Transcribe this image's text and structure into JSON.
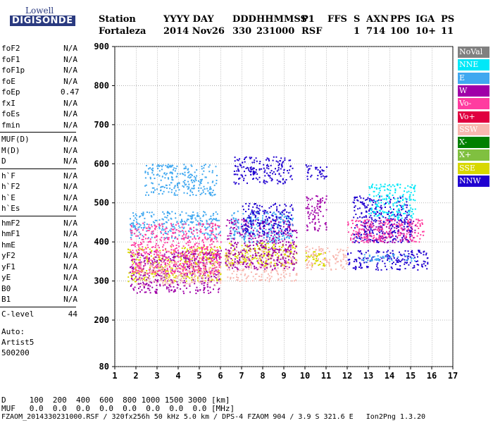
{
  "logo": {
    "top": "Lowell",
    "bottom": "DIGISONDE"
  },
  "header": {
    "cols": [
      {
        "h": "Station",
        "v": "Fortaleza"
      },
      {
        "h": "YYYY DAY",
        "v": "2014 Nov26"
      },
      {
        "h": "DDD",
        "v": "330"
      },
      {
        "h": "HHMMSS",
        "v": "231000"
      },
      {
        "h": "P1",
        "v": "RSF"
      },
      {
        "h": "FFS",
        "v": ""
      },
      {
        "h": "S",
        "v": "1"
      },
      {
        "h": "AXN",
        "v": "714"
      },
      {
        "h": "PPS",
        "v": "100"
      },
      {
        "h": "IGA",
        "v": "10+"
      },
      {
        "h": "PS",
        "v": "11"
      }
    ]
  },
  "params": [
    {
      "k": "foF2",
      "v": "N/A"
    },
    {
      "k": "foF1",
      "v": "N/A"
    },
    {
      "k": "foF1p",
      "v": "N/A"
    },
    {
      "k": "foE",
      "v": "N/A"
    },
    {
      "k": "foEp",
      "v": "0.47"
    },
    {
      "k": "fxI",
      "v": "N/A"
    },
    {
      "k": "foEs",
      "v": "N/A"
    },
    {
      "k": "fmin",
      "v": "N/A"
    },
    {
      "k": "MUF(D)",
      "v": "N/A"
    },
    {
      "k": "M(D)",
      "v": "N/A"
    },
    {
      "k": "D",
      "v": "N/A"
    },
    {
      "k": "h`F",
      "v": "N/A"
    },
    {
      "k": "h`F2",
      "v": "N/A"
    },
    {
      "k": "h`E",
      "v": "N/A"
    },
    {
      "k": "h`Es",
      "v": "N/A"
    },
    {
      "k": "hmF2",
      "v": "N/A"
    },
    {
      "k": "hmF1",
      "v": "N/A"
    },
    {
      "k": "hmE",
      "v": "N/A"
    },
    {
      "k": "yF2",
      "v": "N/A"
    },
    {
      "k": "yF1",
      "v": "N/A"
    },
    {
      "k": "yE",
      "v": "N/A"
    },
    {
      "k": "B0",
      "v": "N/A"
    },
    {
      "k": "B1",
      "v": "N/A"
    },
    {
      "k": "C-level",
      "v": "44"
    }
  ],
  "auto": [
    "Auto:",
    "Artist5",
    "500200"
  ],
  "legend": [
    {
      "label": "NoVal",
      "color": "#808080"
    },
    {
      "label": "NNE",
      "color": "#00e8f8"
    },
    {
      "label": "E",
      "color": "#40a8f0"
    },
    {
      "label": "W",
      "color": "#a000a8"
    },
    {
      "label": "Vo-",
      "color": "#ff3ca0"
    },
    {
      "label": "Vo+",
      "color": "#e00040"
    },
    {
      "label": "SSW",
      "color": "#f8b8b0"
    },
    {
      "label": "X-",
      "color": "#008000"
    },
    {
      "label": "X+",
      "color": "#80c040"
    },
    {
      "label": "SSE",
      "color": "#d8d800"
    },
    {
      "label": "NNW",
      "color": "#2000d0"
    }
  ],
  "footer": {
    "d_row": "D     100  200  400  600  800 1000 1500 3000 [km]",
    "muf_row": "MUF   0.0  0.0  0.0  0.0  0.0  0.0  0.0  0.0 [MHz]",
    "info": "FZAOM_2014330231000.RSF / 320fx256h 50 kHz 5.0 km / DPS-4 FZAOM 904 / 3.9 S 321.6 E   Ion2Png 1.3.20"
  },
  "chart_data": {
    "type": "scatter",
    "x_ticks": [
      "1",
      "2",
      "3",
      "4",
      "5",
      "6",
      "7",
      "8",
      "9",
      "10",
      "11",
      "12",
      "13",
      "14",
      "15",
      "16",
      "17"
    ],
    "y_ticks": [
      "80",
      "200",
      "300",
      "400",
      "500",
      "600",
      "700",
      "800",
      "900"
    ],
    "xlim": [
      1,
      17
    ],
    "y_display_values": [
      80,
      200,
      300,
      400,
      500,
      600,
      700,
      800,
      900
    ],
    "grid": true,
    "clusters": [
      {
        "series": "SSE",
        "x": [
          1.6,
          6.0
        ],
        "y": [
          300,
          390
        ]
      },
      {
        "series": "E",
        "x": [
          1.7,
          6.0
        ],
        "y": [
          410,
          480
        ]
      },
      {
        "series": "W",
        "x": [
          1.7,
          6.0
        ],
        "y": [
          270,
          380
        ]
      },
      {
        "series": "SSW",
        "x": [
          2.0,
          6.0
        ],
        "y": [
          290,
          350
        ]
      },
      {
        "series": "Vo-",
        "x": [
          1.7,
          6.0
        ],
        "y": [
          320,
          450
        ]
      },
      {
        "series": "E",
        "x": [
          2.4,
          5.8
        ],
        "y": [
          520,
          600
        ]
      },
      {
        "series": "SSW",
        "x": [
          6.2,
          9.6
        ],
        "y": [
          300,
          380
        ]
      },
      {
        "series": "SSE",
        "x": [
          6.2,
          9.6
        ],
        "y": [
          340,
          400
        ]
      },
      {
        "series": "W",
        "x": [
          6.2,
          9.6
        ],
        "y": [
          330,
          460
        ]
      },
      {
        "series": "E",
        "x": [
          6.4,
          9.4
        ],
        "y": [
          400,
          480
        ]
      },
      {
        "series": "NNW",
        "x": [
          6.6,
          9.4
        ],
        "y": [
          550,
          620
        ]
      },
      {
        "series": "NNW",
        "x": [
          7.0,
          9.4
        ],
        "y": [
          420,
          500
        ]
      },
      {
        "series": "SSW",
        "x": [
          10.0,
          12.0
        ],
        "y": [
          330,
          390
        ]
      },
      {
        "series": "SSE",
        "x": [
          10.0,
          11.0
        ],
        "y": [
          340,
          380
        ]
      },
      {
        "series": "W",
        "x": [
          10.0,
          11.0
        ],
        "y": [
          430,
          520
        ]
      },
      {
        "series": "NNW",
        "x": [
          10.0,
          11.0
        ],
        "y": [
          560,
          600
        ]
      },
      {
        "series": "NNW",
        "x": [
          12.0,
          15.8
        ],
        "y": [
          330,
          380
        ]
      },
      {
        "series": "E",
        "x": [
          12.6,
          15.2
        ],
        "y": [
          350,
          370
        ]
      },
      {
        "series": "W",
        "x": [
          12.6,
          15.2
        ],
        "y": [
          400,
          460
        ]
      },
      {
        "series": "NNW",
        "x": [
          12.2,
          15.0
        ],
        "y": [
          400,
          520
        ]
      },
      {
        "series": "NNE",
        "x": [
          13.0,
          15.2
        ],
        "y": [
          460,
          550
        ]
      },
      {
        "series": "Vo-",
        "x": [
          12.0,
          15.6
        ],
        "y": [
          400,
          460
        ]
      }
    ]
  }
}
